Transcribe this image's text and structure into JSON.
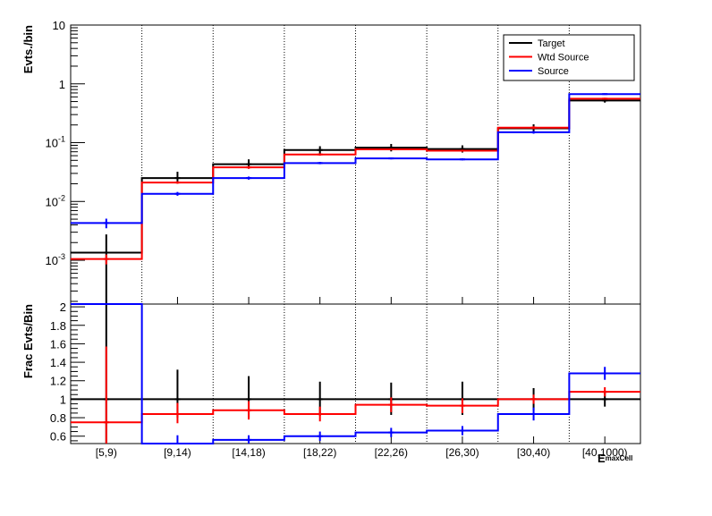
{
  "chart_data": [
    {
      "type": "step",
      "yscale": "log",
      "ylabel": "Evts./bin",
      "ylim": [
        0.00018,
        10
      ],
      "yticks": [
        {
          "value": 0.001,
          "base": "10",
          "exp": "-3"
        },
        {
          "value": 0.01,
          "base": "10",
          "exp": "-2"
        },
        {
          "value": 0.1,
          "base": "10",
          "exp": "-1"
        },
        {
          "value": 1,
          "label": "1"
        },
        {
          "value": 10,
          "label": "10"
        }
      ],
      "categories": [
        "[5,9)",
        "[9,14)",
        "[14,18)",
        "[18,22)",
        "[22,26)",
        "[26,30)",
        "[30,40)",
        "[40,1000)"
      ],
      "grid": "vertical-dotted",
      "legend_position": "top-right",
      "series": [
        {
          "name": "Target",
          "color": "#000000",
          "values": [
            0.00135,
            0.025,
            0.043,
            0.075,
            0.082,
            0.078,
            0.175,
            0.52
          ],
          "err_low": [
            0.00122,
            0.005,
            0.007,
            0.01,
            0.011,
            0.01,
            0.025,
            0.04
          ],
          "err_high": [
            0.0014,
            0.007,
            0.009,
            0.012,
            0.013,
            0.012,
            0.03,
            0.05
          ]
        },
        {
          "name": "Wtd Source",
          "color": "#ff0000",
          "values": [
            0.00105,
            0.021,
            0.038,
            0.063,
            0.077,
            0.073,
            0.18,
            0.56
          ],
          "err_low": [
            0.0002,
            0.001,
            0.002,
            0.003,
            0.003,
            0.003,
            0.01,
            0.02
          ],
          "err_high": [
            0.0002,
            0.001,
            0.002,
            0.003,
            0.003,
            0.003,
            0.01,
            0.02
          ]
        },
        {
          "name": "Source",
          "color": "#0000ff",
          "values": [
            0.0043,
            0.0135,
            0.025,
            0.045,
            0.054,
            0.052,
            0.15,
            0.67
          ],
          "err_low": [
            0.0008,
            0.001,
            0.0015,
            0.002,
            0.002,
            0.002,
            0.008,
            0.02
          ],
          "err_high": [
            0.0008,
            0.001,
            0.0015,
            0.002,
            0.002,
            0.002,
            0.008,
            0.02
          ]
        }
      ]
    },
    {
      "type": "step",
      "ylabel": "Frac Evts/Bin",
      "xlabel": "E",
      "xlabel_sub": "maxCell",
      "ylim": [
        0.52,
        2.03
      ],
      "yticks": [
        0.6,
        0.8,
        1,
        1.2,
        1.4,
        1.6,
        1.8,
        2
      ],
      "ytick_labels": [
        "0.6",
        "0.8",
        "1",
        "1.2",
        "1.4",
        "1.6",
        "1.8",
        "2"
      ],
      "categories": [
        "[5,9)",
        "[9,14)",
        "[14,18)",
        "[18,22)",
        "[22,26)",
        "[26,30)",
        "[30,40)",
        "[40,1000)"
      ],
      "grid": "vertical-dotted",
      "series": [
        {
          "name": "Target",
          "color": "#000000",
          "values": [
            1,
            1,
            1,
            1,
            1,
            1,
            1,
            1
          ],
          "err_low": [
            0.9,
            0.2,
            0.2,
            0.18,
            0.17,
            0.17,
            0.12,
            0.08
          ],
          "err_high": [
            1.2,
            0.32,
            0.25,
            0.19,
            0.18,
            0.19,
            0.12,
            0.08
          ]
        },
        {
          "name": "Wtd Source",
          "color": "#ff0000",
          "values": [
            0.75,
            0.84,
            0.88,
            0.84,
            0.94,
            0.93,
            1.0,
            1.08
          ],
          "err_low": [
            0.3,
            0.1,
            0.1,
            0.08,
            0.08,
            0.08,
            0.05,
            0.05
          ],
          "err_high": [
            0.82,
            0.12,
            0.1,
            0.08,
            0.08,
            0.08,
            0.05,
            0.05
          ]
        },
        {
          "name": "Source",
          "color": "#0000ff",
          "values": [
            2.1,
            0.51,
            0.56,
            0.6,
            0.64,
            0.66,
            0.84,
            1.28
          ],
          "err_low": [
            0.0,
            0.06,
            0.05,
            0.05,
            0.05,
            0.05,
            0.07,
            0.07
          ],
          "err_high": [
            0.0,
            0.1,
            0.05,
            0.05,
            0.05,
            0.05,
            0.07,
            0.07
          ]
        }
      ]
    }
  ]
}
